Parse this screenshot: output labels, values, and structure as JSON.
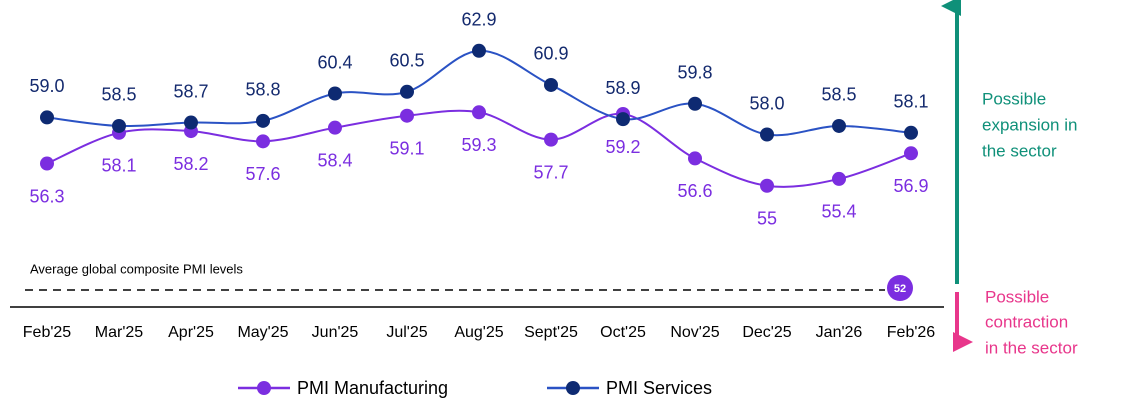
{
  "chart_data": {
    "type": "line",
    "categories": [
      "Feb'25",
      "Mar'25",
      "Apr'25",
      "May'25",
      "Jun'25",
      "Jul'25",
      "Aug'25",
      "Sept'25",
      "Oct'25",
      "Nov'25",
      "Dec'25",
      "Jan'26",
      "Feb'26"
    ],
    "series": [
      {
        "name": "PMI Manufacturing",
        "color": "#7b2ee0",
        "label_color": "#7b2ee0",
        "values": [
          56.3,
          58.1,
          58.2,
          57.6,
          58.4,
          59.1,
          59.3,
          57.7,
          59.2,
          56.6,
          55,
          55.4,
          56.9
        ],
        "value_labels": [
          "56.3",
          "58.1",
          "58.2",
          "57.6",
          "58.4",
          "59.1",
          "59.3",
          "57.7",
          "59.2",
          "56.6",
          "55",
          "55.4",
          "56.9"
        ]
      },
      {
        "name": "PMI Services",
        "color": "#2a52c4",
        "marker_color": "#0e2a72",
        "label_color": "#142a6e",
        "values": [
          59.0,
          58.5,
          58.7,
          58.8,
          60.4,
          60.5,
          62.9,
          60.9,
          58.9,
          59.8,
          58.0,
          58.5,
          58.1
        ],
        "value_labels": [
          "59.0",
          "58.5",
          "58.7",
          "58.8",
          "60.4",
          "60.5",
          "62.9",
          "60.9",
          "58.9",
          "59.8",
          "58.0",
          "58.5",
          "58.1"
        ]
      }
    ],
    "ylim": [
      52,
      64
    ],
    "annotations": {
      "average_label": "Average global composite PMI levels",
      "average_value": "52",
      "expansion": [
        "Possible",
        "expansion in",
        "the sector"
      ],
      "contraction": [
        "Possible",
        "contraction",
        "in the sector"
      ]
    }
  }
}
